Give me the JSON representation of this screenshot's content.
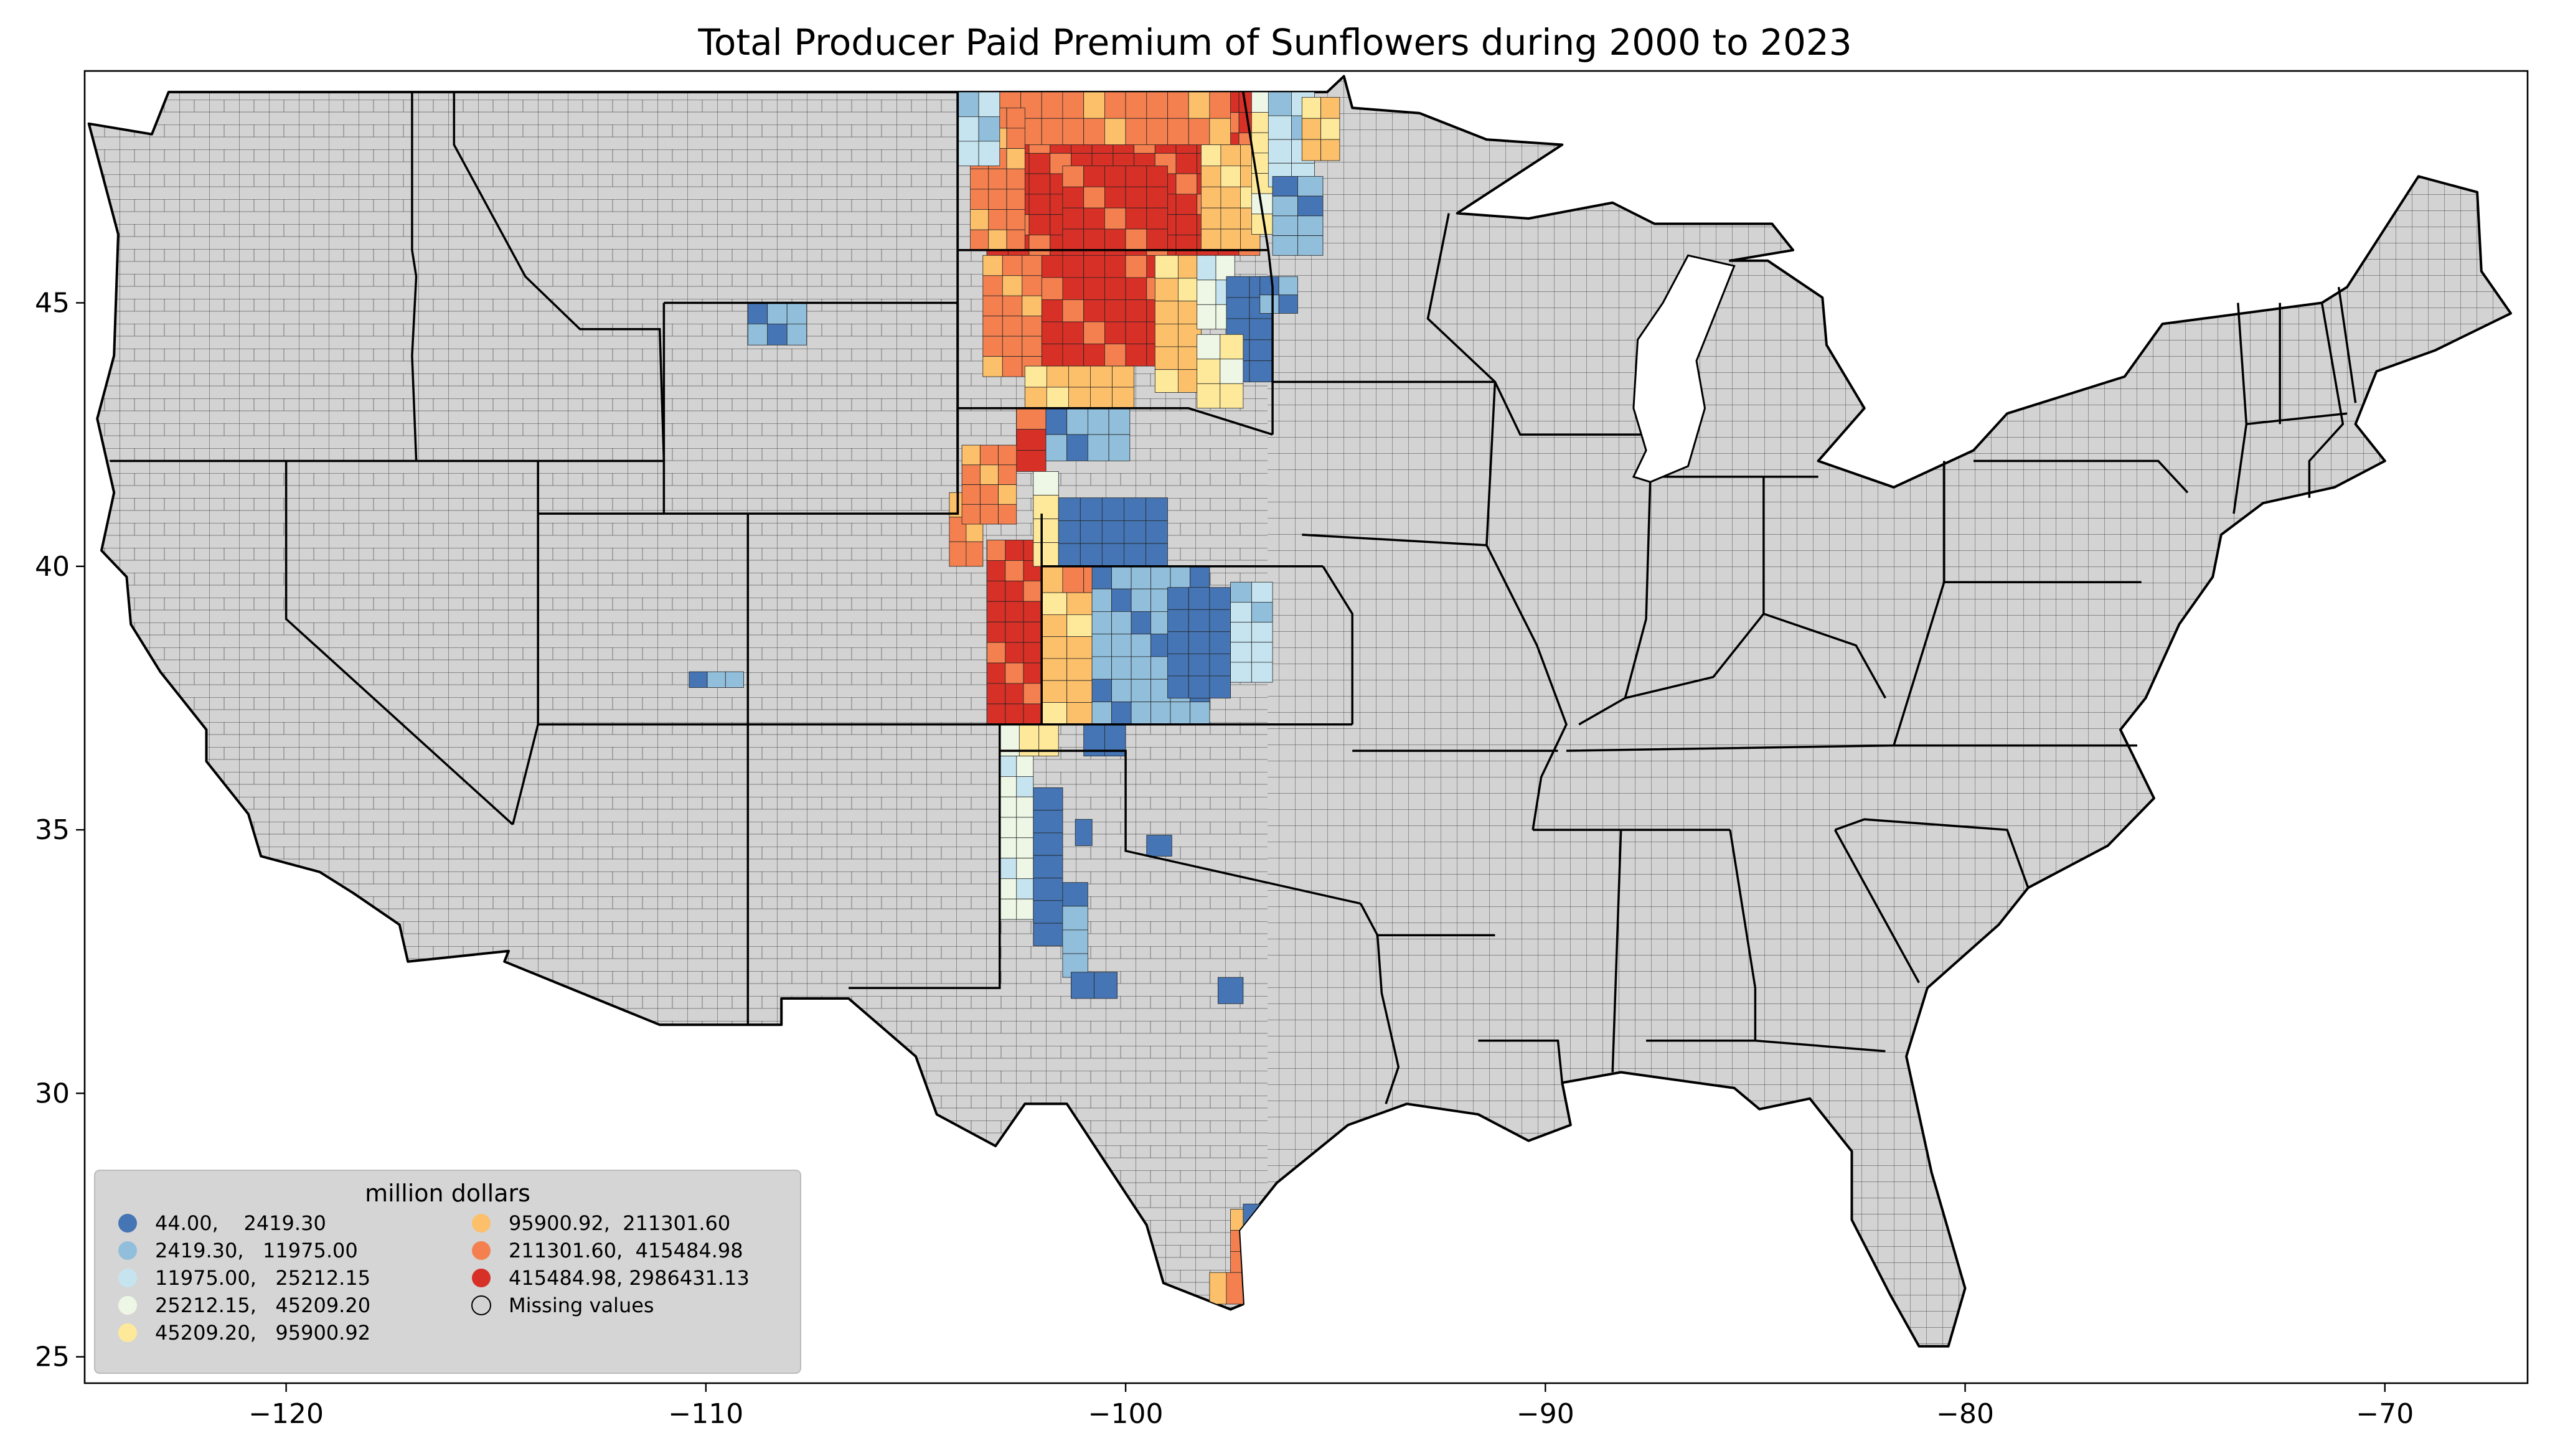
{
  "title": "Total Producer Paid Premium of Sunflowers during 2000 to 2023",
  "axes": {
    "x_ticks": [
      {
        "value": -120,
        "label": "−120"
      },
      {
        "value": -110,
        "label": "−110"
      },
      {
        "value": -100,
        "label": "−100"
      },
      {
        "value": -90,
        "label": "−90"
      },
      {
        "value": -80,
        "label": "−80"
      },
      {
        "value": -70,
        "label": "−70"
      }
    ],
    "y_ticks": [
      {
        "value": 25,
        "label": "25"
      },
      {
        "value": 30,
        "label": "30"
      },
      {
        "value": 35,
        "label": "35"
      },
      {
        "value": 40,
        "label": "40"
      },
      {
        "value": 45,
        "label": "45"
      }
    ],
    "xlim": [
      -124.8,
      -66.6
    ],
    "ylim": [
      24.5,
      49.4
    ]
  },
  "legend": {
    "title": "million dollars",
    "position": "lower-left",
    "items": [
      {
        "label": "44.00,    2419.30",
        "color": "#4575b4"
      },
      {
        "label": "2419.30,   11975.00",
        "color": "#91bfdb"
      },
      {
        "label": "11975.00,   25212.15",
        "color": "#c6e4ef"
      },
      {
        "label": "25212.15,   45209.20",
        "color": "#eef7e6"
      },
      {
        "label": "45209.20,   95900.92",
        "color": "#fee99a"
      },
      {
        "label": "95900.92,  211301.60",
        "color": "#fcc06b"
      },
      {
        "label": "211301.60,  415484.98",
        "color": "#f48050"
      },
      {
        "label": "415484.98, 2986431.13",
        "color": "#d73027"
      },
      {
        "label": "Missing values",
        "color": "#d3d3d3"
      }
    ]
  },
  "colors": {
    "missing": "#d3d3d3",
    "background": "#ffffff"
  },
  "map_data": {
    "type": "choropleth",
    "unit": "million dollars",
    "regions": [
      {
        "lon0": -103.3,
        "lon1": -96.8,
        "lat0": 45.9,
        "lat1": 49.0,
        "value_class": 7
      },
      {
        "lon0": -101.5,
        "lon1": -99.0,
        "lat0": 45.6,
        "lat1": 47.6,
        "value_class": 7
      },
      {
        "lon0": -103.5,
        "lon1": -97.5,
        "lat0": 48.0,
        "lat1": 49.0,
        "value_class": 6
      },
      {
        "lon0": -103.7,
        "lon1": -102.4,
        "lat0": 46.0,
        "lat1": 48.7,
        "value_class": 6
      },
      {
        "lon0": -98.2,
        "lon1": -96.8,
        "lat0": 46.0,
        "lat1": 48.0,
        "value_class": 5
      },
      {
        "lon0": -97.0,
        "lon1": -96.5,
        "lat0": 46.3,
        "lat1": 49.0,
        "value_class": 4
      },
      {
        "lon0": -96.6,
        "lon1": -95.5,
        "lat0": 47.2,
        "lat1": 49.0,
        "value_class": 2
      },
      {
        "lon0": -96.5,
        "lon1": -95.3,
        "lat0": 45.9,
        "lat1": 47.4,
        "value_class": 1
      },
      {
        "lon0": -95.8,
        "lon1": -94.9,
        "lat0": 47.7,
        "lat1": 48.9,
        "value_class": 5
      },
      {
        "lon0": -104.0,
        "lon1": -103.0,
        "lat0": 47.6,
        "lat1": 49.0,
        "value_class": 2
      },
      {
        "lon0": -102.5,
        "lon1": -98.5,
        "lat0": 43.8,
        "lat1": 45.9,
        "value_class": 7
      },
      {
        "lon0": -103.4,
        "lon1": -102.0,
        "lat0": 43.6,
        "lat1": 45.9,
        "value_class": 6
      },
      {
        "lon0": -99.3,
        "lon1": -98.2,
        "lat0": 43.3,
        "lat1": 45.9,
        "value_class": 5
      },
      {
        "lon0": -98.3,
        "lon1": -97.4,
        "lat0": 44.5,
        "lat1": 45.9,
        "value_class": 3
      },
      {
        "lon0": -97.6,
        "lon1": -96.5,
        "lat0": 43.5,
        "lat1": 45.5,
        "value_class": 0
      },
      {
        "lon0": -98.3,
        "lon1": -97.2,
        "lat0": 43.0,
        "lat1": 44.4,
        "value_class": 4
      },
      {
        "lon0": -102.4,
        "lon1": -99.8,
        "lat0": 43.0,
        "lat1": 43.8,
        "value_class": 5
      },
      {
        "lon0": -96.8,
        "lon1": -95.9,
        "lat0": 44.8,
        "lat1": 45.5,
        "value_class": 1
      },
      {
        "lon0": -109.0,
        "lon1": -107.6,
        "lat0": 44.2,
        "lat1": 45.0,
        "value_class": 1
      },
      {
        "lon0": -104.2,
        "lon1": -103.4,
        "lat0": 40.0,
        "lat1": 41.4,
        "value_class": 6
      },
      {
        "lon0": -103.3,
        "lon1": -102.0,
        "lat0": 37.0,
        "lat1": 40.5,
        "value_class": 7
      },
      {
        "lon0": -102.6,
        "lon1": -101.9,
        "lat0": 41.8,
        "lat1": 43.0,
        "value_class": 7
      },
      {
        "lon0": -103.9,
        "lon1": -102.6,
        "lat0": 40.8,
        "lat1": 42.3,
        "value_class": 6
      },
      {
        "lon0": -101.9,
        "lon1": -99.9,
        "lat0": 42.0,
        "lat1": 43.0,
        "value_class": 1
      },
      {
        "lon0": -102.2,
        "lon1": -101.6,
        "lat0": 40.0,
        "lat1": 41.8,
        "value_class": 4
      },
      {
        "lon0": -101.6,
        "lon1": -99.0,
        "lat0": 40.0,
        "lat1": 41.3,
        "value_class": 0
      },
      {
        "lon0": -102.0,
        "lon1": -100.0,
        "lat0": 39.5,
        "lat1": 40.0,
        "value_class": 6
      },
      {
        "lon0": -102.0,
        "lon1": -100.8,
        "lat0": 37.0,
        "lat1": 39.5,
        "value_class": 5
      },
      {
        "lon0": -100.8,
        "lon1": -98.0,
        "lat0": 37.0,
        "lat1": 40.0,
        "value_class": 1
      },
      {
        "lon0": -99.0,
        "lon1": -97.5,
        "lat0": 37.5,
        "lat1": 39.6,
        "value_class": 0
      },
      {
        "lon0": -97.5,
        "lon1": -96.5,
        "lat0": 37.8,
        "lat1": 39.7,
        "value_class": 2
      },
      {
        "lon0": -103.0,
        "lon1": -101.6,
        "lat0": 36.4,
        "lat1": 37.0,
        "value_class": 4
      },
      {
        "lon0": -101.0,
        "lon1": -100.0,
        "lat0": 36.4,
        "lat1": 37.0,
        "value_class": 0
      },
      {
        "lon0": -103.0,
        "lon1": -102.2,
        "lat0": 33.3,
        "lat1": 36.4,
        "value_class": 3
      },
      {
        "lon0": -102.2,
        "lon1": -101.5,
        "lat0": 32.8,
        "lat1": 35.8,
        "value_class": 0
      },
      {
        "lon0": -101.5,
        "lon1": -100.9,
        "lat0": 32.2,
        "lat1": 34.0,
        "value_class": 1
      },
      {
        "lon0": -101.2,
        "lon1": -100.8,
        "lat0": 34.7,
        "lat1": 35.2,
        "value_class": 0
      },
      {
        "lon0": -99.5,
        "lon1": -98.9,
        "lat0": 34.5,
        "lat1": 34.9,
        "value_class": 0
      },
      {
        "lon0": -101.3,
        "lon1": -100.2,
        "lat0": 31.8,
        "lat1": 32.3,
        "value_class": 0
      },
      {
        "lon0": -97.8,
        "lon1": -97.2,
        "lat0": 31.7,
        "lat1": 32.2,
        "value_class": 0
      },
      {
        "lon0": -97.5,
        "lon1": -96.9,
        "lat0": 26.6,
        "lat1": 27.8,
        "value_class": 6
      },
      {
        "lon0": -97.2,
        "lon1": -96.6,
        "lat0": 27.3,
        "lat1": 27.9,
        "value_class": 1
      },
      {
        "lon0": -98.0,
        "lon1": -97.2,
        "lat0": 26.0,
        "lat1": 26.6,
        "value_class": 6
      },
      {
        "lon0": -110.4,
        "lon1": -109.1,
        "lat0": 37.7,
        "lat1": 38.0,
        "value_class": 1
      }
    ]
  }
}
